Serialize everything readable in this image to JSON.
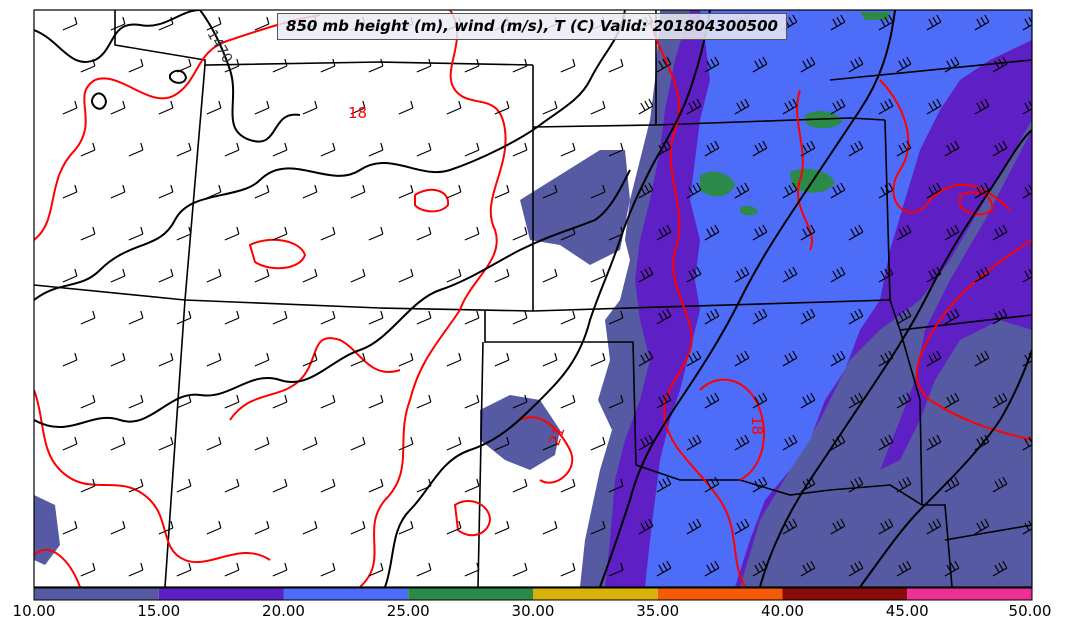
{
  "title": "850 mb height (m), wind (m/s), T (C) Valid: 201804300500",
  "contour_labels": {
    "height_1": "1470",
    "temp_upper": "18",
    "temp_right": "18",
    "temp_mid": "21"
  },
  "colorbar": {
    "ticks": [
      "10.00",
      "15.00",
      "20.00",
      "25.00",
      "30.00",
      "35.00",
      "40.00",
      "45.00",
      "50.00"
    ],
    "colors": [
      "#565aa2",
      "#5e1fc4",
      "#4d6cf7",
      "#2b8a4a",
      "#d8b10a",
      "#f55a07",
      "#8b0a0a",
      "#ee2f95"
    ]
  },
  "shading_colors": {
    "band_10_15": "#565aa2",
    "band_15_20": "#5e1fc4",
    "band_20_25": "#4d6cf7",
    "band_25_30": "#2b8a4a"
  },
  "line_colors": {
    "height_contours": "#000000",
    "temperature_contours": "#ff0000",
    "state_borders": "#000000"
  }
}
